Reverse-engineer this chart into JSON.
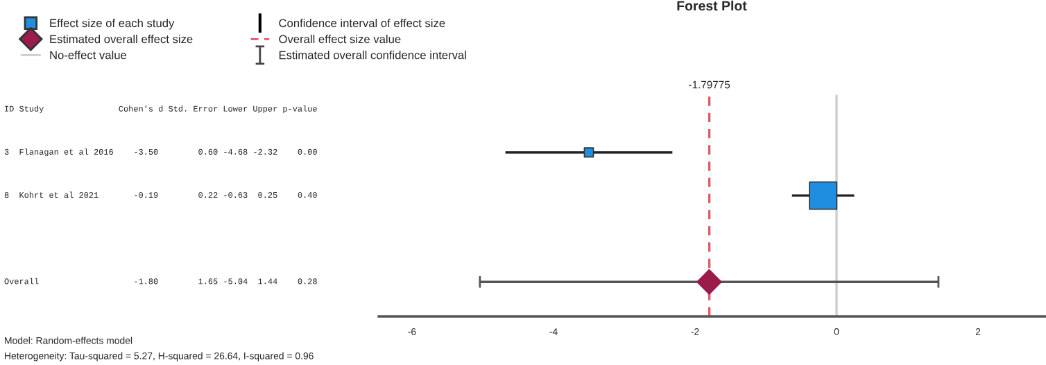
{
  "chart_data": {
    "type": "scatter",
    "title": "Forest Plot",
    "orientation": "horizontal",
    "categories": [
      "3  Flanagan et al 2016    -3.50        0.60 -4.68 -2.32    0.00",
      "8  Kohrt et al 2021       -0.19        0.22 -0.63  0.25    0.40",
      null,
      "Overall                   -1.80        1.65 -5.04  1.44    0.28"
    ],
    "series": [
      {
        "name": "Effect size of each study",
        "color": "#1f8ee0",
        "marker": "square",
        "values": [
          -3.5,
          -0.19,
          null,
          null
        ],
        "sizes": [
          0.11,
          1,
          null,
          null
        ],
        "errors": [
          [
            -4.68,
            -2.32
          ],
          [
            -0.63,
            0.25
          ],
          null,
          null
        ]
      },
      {
        "name": "Estimated overall effect size",
        "color": "#9b1b4a",
        "marker": "diamond",
        "values": [
          null,
          null,
          null,
          -1.8
        ],
        "errors": [
          null,
          null,
          null,
          [
            -5.04,
            1.44
          ]
        ]
      }
    ],
    "ref_lines": [
      {
        "axis": "x",
        "value": 0,
        "label": "No-effect value",
        "color": "#cccccc",
        "line_style": "solid"
      },
      {
        "axis": "x",
        "value": -1.79775,
        "label": "Overall effect size value",
        "color": "#e05a6a",
        "line_style": "dashed"
      }
    ],
    "xlim": [
      -6.47,
      2.96
    ],
    "xticks": [
      -6,
      -4,
      -2,
      0,
      2
    ],
    "grid": false,
    "legend": "top left",
    "tick_labels": "x",
    "annotations": [
      "-1.79775",
      "ID Study               Cohen's d Std. Error Lower Upper p-value",
      "Confidence interval of effect size",
      "Estimated overall confidence interval",
      "Model: Random-effects model",
      "Heterogeneity: Tau-squared = 5.27, H-squared = 26.64, I-squared = 0.96"
    ]
  }
}
